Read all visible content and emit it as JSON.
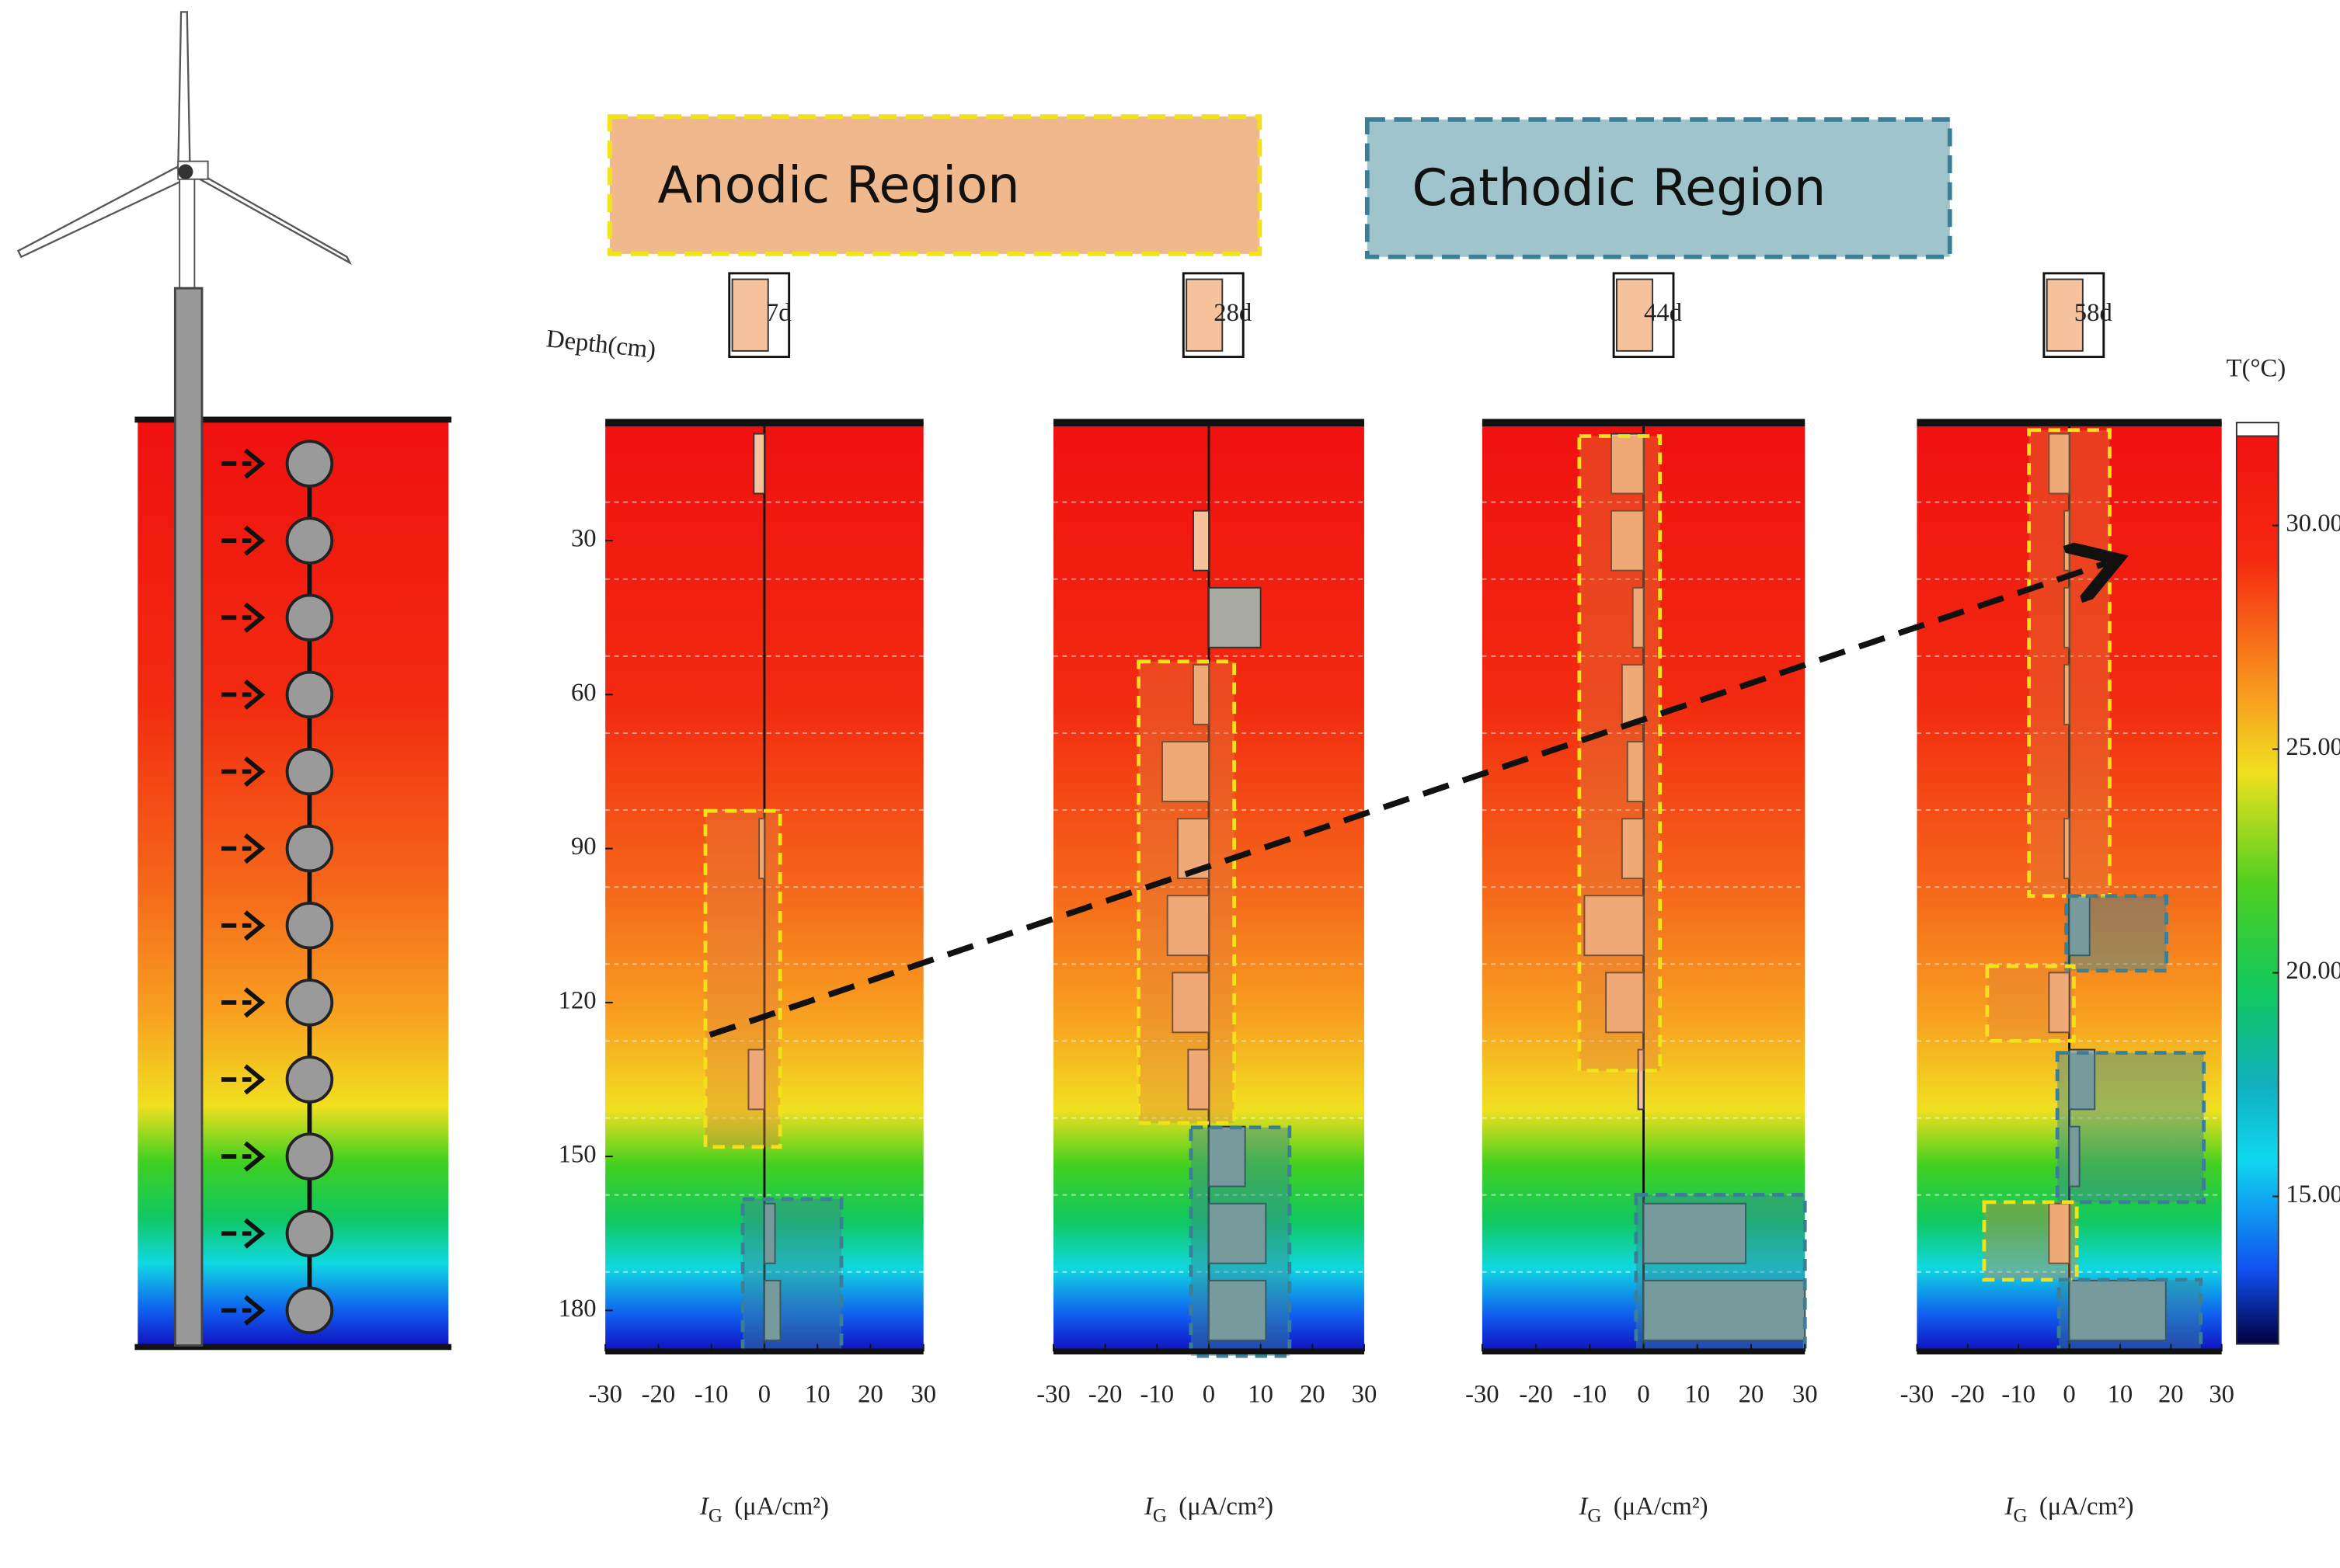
{
  "chart_data": {
    "type": "bar",
    "orientation": "horizontal",
    "regions": [
      "Anodic Region",
      "Cathodic Region"
    ],
    "y_label": "Depth(cm)",
    "x_label_symbol": "I",
    "x_label_sub": "G",
    "x_label_unit": "(μA/cm²)",
    "depths": [
      15,
      30,
      45,
      60,
      75,
      90,
      105,
      120,
      135,
      150,
      165,
      180
    ],
    "xlim": [
      -30,
      30
    ],
    "xticks": [
      -30,
      -20,
      -10,
      0,
      10,
      20,
      30
    ],
    "ylim": [
      7,
      188
    ],
    "yticks": [
      30,
      60,
      90,
      120,
      150,
      180
    ],
    "anodic_color": "#f5c29b",
    "cathodic_color": "#a8aaa2",
    "panels": [
      {
        "name": "7d",
        "values": [
          -2,
          0,
          0,
          0,
          0,
          -1,
          0,
          0,
          -3,
          0,
          2,
          3
        ]
      },
      {
        "name": "28d",
        "values": [
          0,
          -3,
          10,
          -3,
          -9,
          -6,
          -8,
          -7,
          -4,
          7,
          11,
          11
        ]
      },
      {
        "name": "44d",
        "values": [
          -6,
          -6,
          -2,
          -4,
          -3,
          -4,
          -11,
          -7,
          -1,
          0,
          19,
          30
        ]
      },
      {
        "name": "58d",
        "values": [
          -4,
          -1,
          -1,
          -1,
          0,
          -1,
          4,
          -4,
          5,
          2,
          -4,
          19
        ]
      }
    ],
    "colorbar": {
      "label": "T(°C)",
      "clim": [
        11.7,
        32.3
      ],
      "ticks": [
        {
          "value": 30,
          "label": "30.00"
        },
        {
          "value": 25,
          "label": "25.00"
        },
        {
          "value": 20,
          "label": "20.00"
        },
        {
          "value": 15,
          "label": "15.00"
        }
      ]
    }
  }
}
